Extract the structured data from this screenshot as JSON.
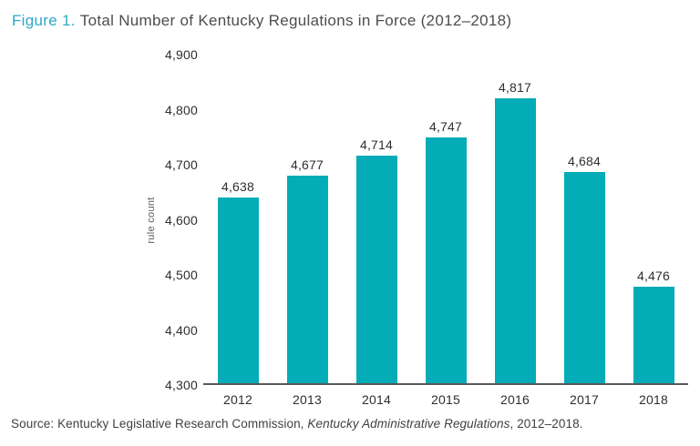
{
  "title": {
    "figure_label": "Figure 1.",
    "text": "Total Number of Kentucky Regulations in Force (2012–2018)"
  },
  "source": {
    "prefix": "Source: Kentucky Legislative Research Commission, ",
    "italic": "Kentucky Administrative Regulations",
    "suffix": ", 2012–2018."
  },
  "colors": {
    "bar": "#03acb6",
    "figure_label_accent": "#2fa9c6",
    "title_text": "#4d4d4f",
    "axis_line": "#58595b",
    "label_text": "#2e2e30",
    "source_text": "#414042"
  },
  "chart_data": {
    "type": "bar",
    "title": "Figure 1. Total Number of Kentucky Regulations in Force (2012–2018)",
    "categories": [
      "2012",
      "2013",
      "2014",
      "2015",
      "2016",
      "2017",
      "2018"
    ],
    "values": [
      4638,
      4677,
      4714,
      4747,
      4817,
      4684,
      4476
    ],
    "value_labels": [
      "4,638",
      "4,677",
      "4,714",
      "4,747",
      "4,817",
      "4,684",
      "4,476"
    ],
    "xlabel": "",
    "ylabel": "rule count",
    "ylim": [
      4300,
      4900
    ],
    "yticks": [
      4300,
      4400,
      4500,
      4600,
      4700,
      4800,
      4900
    ],
    "ytick_labels": [
      "4,300",
      "4,400",
      "4,500",
      "4,600",
      "4,700",
      "4,800",
      "4,900"
    ],
    "grid": false,
    "legend": false,
    "bar_color": "#03acb6"
  }
}
